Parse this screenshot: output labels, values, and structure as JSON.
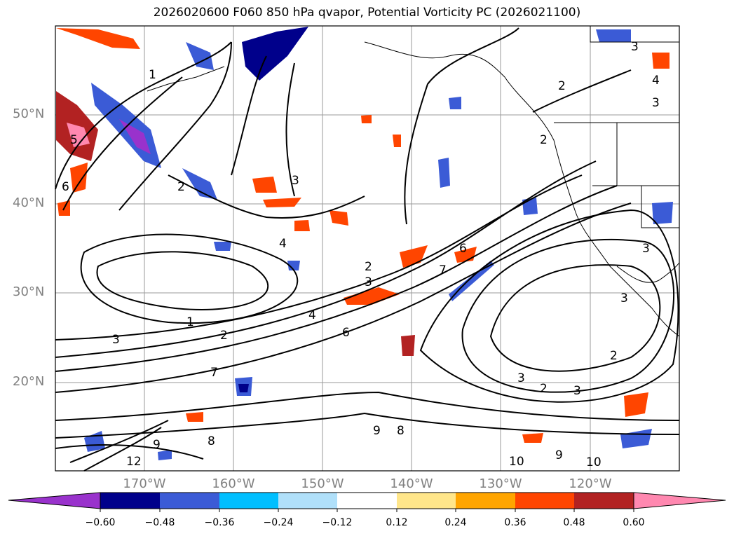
{
  "title": "2026020600 F060 850 hPa qvapor, Potential Vorticity PC (2026021100)",
  "map": {
    "lat_labels": [
      {
        "label": "50°N",
        "lat": 50
      },
      {
        "label": "40°N",
        "lat": 40
      },
      {
        "label": "30°N",
        "lat": 30
      },
      {
        "label": "20°N",
        "lat": 20
      }
    ],
    "lon_labels": [
      {
        "label": "170°W",
        "lon": -170
      },
      {
        "label": "160°W",
        "lon": -160
      },
      {
        "label": "150°W",
        "lon": -150
      },
      {
        "label": "140°W",
        "lon": -140
      },
      {
        "label": "130°W",
        "lon": -130
      },
      {
        "label": "120°W",
        "lon": -120
      }
    ],
    "contour_labels": [
      "1",
      "2",
      "3",
      "4",
      "5",
      "6",
      "7",
      "8",
      "9",
      "10",
      "12"
    ],
    "gridlines": true
  },
  "colorbar": {
    "ticks": [
      "−0.60",
      "−0.48",
      "−0.36",
      "−0.24",
      "−0.12",
      "0.12",
      "0.24",
      "0.36",
      "0.48",
      "0.60"
    ],
    "colors": [
      "#9932cc",
      "#00008b",
      "#3b5bd6",
      "#00bfff",
      "#b0e0fa",
      "#ffffff",
      "#ffe68a",
      "#ffa500",
      "#ff4500",
      "#b22222",
      "#ff88b0"
    ],
    "extend": "both"
  }
}
